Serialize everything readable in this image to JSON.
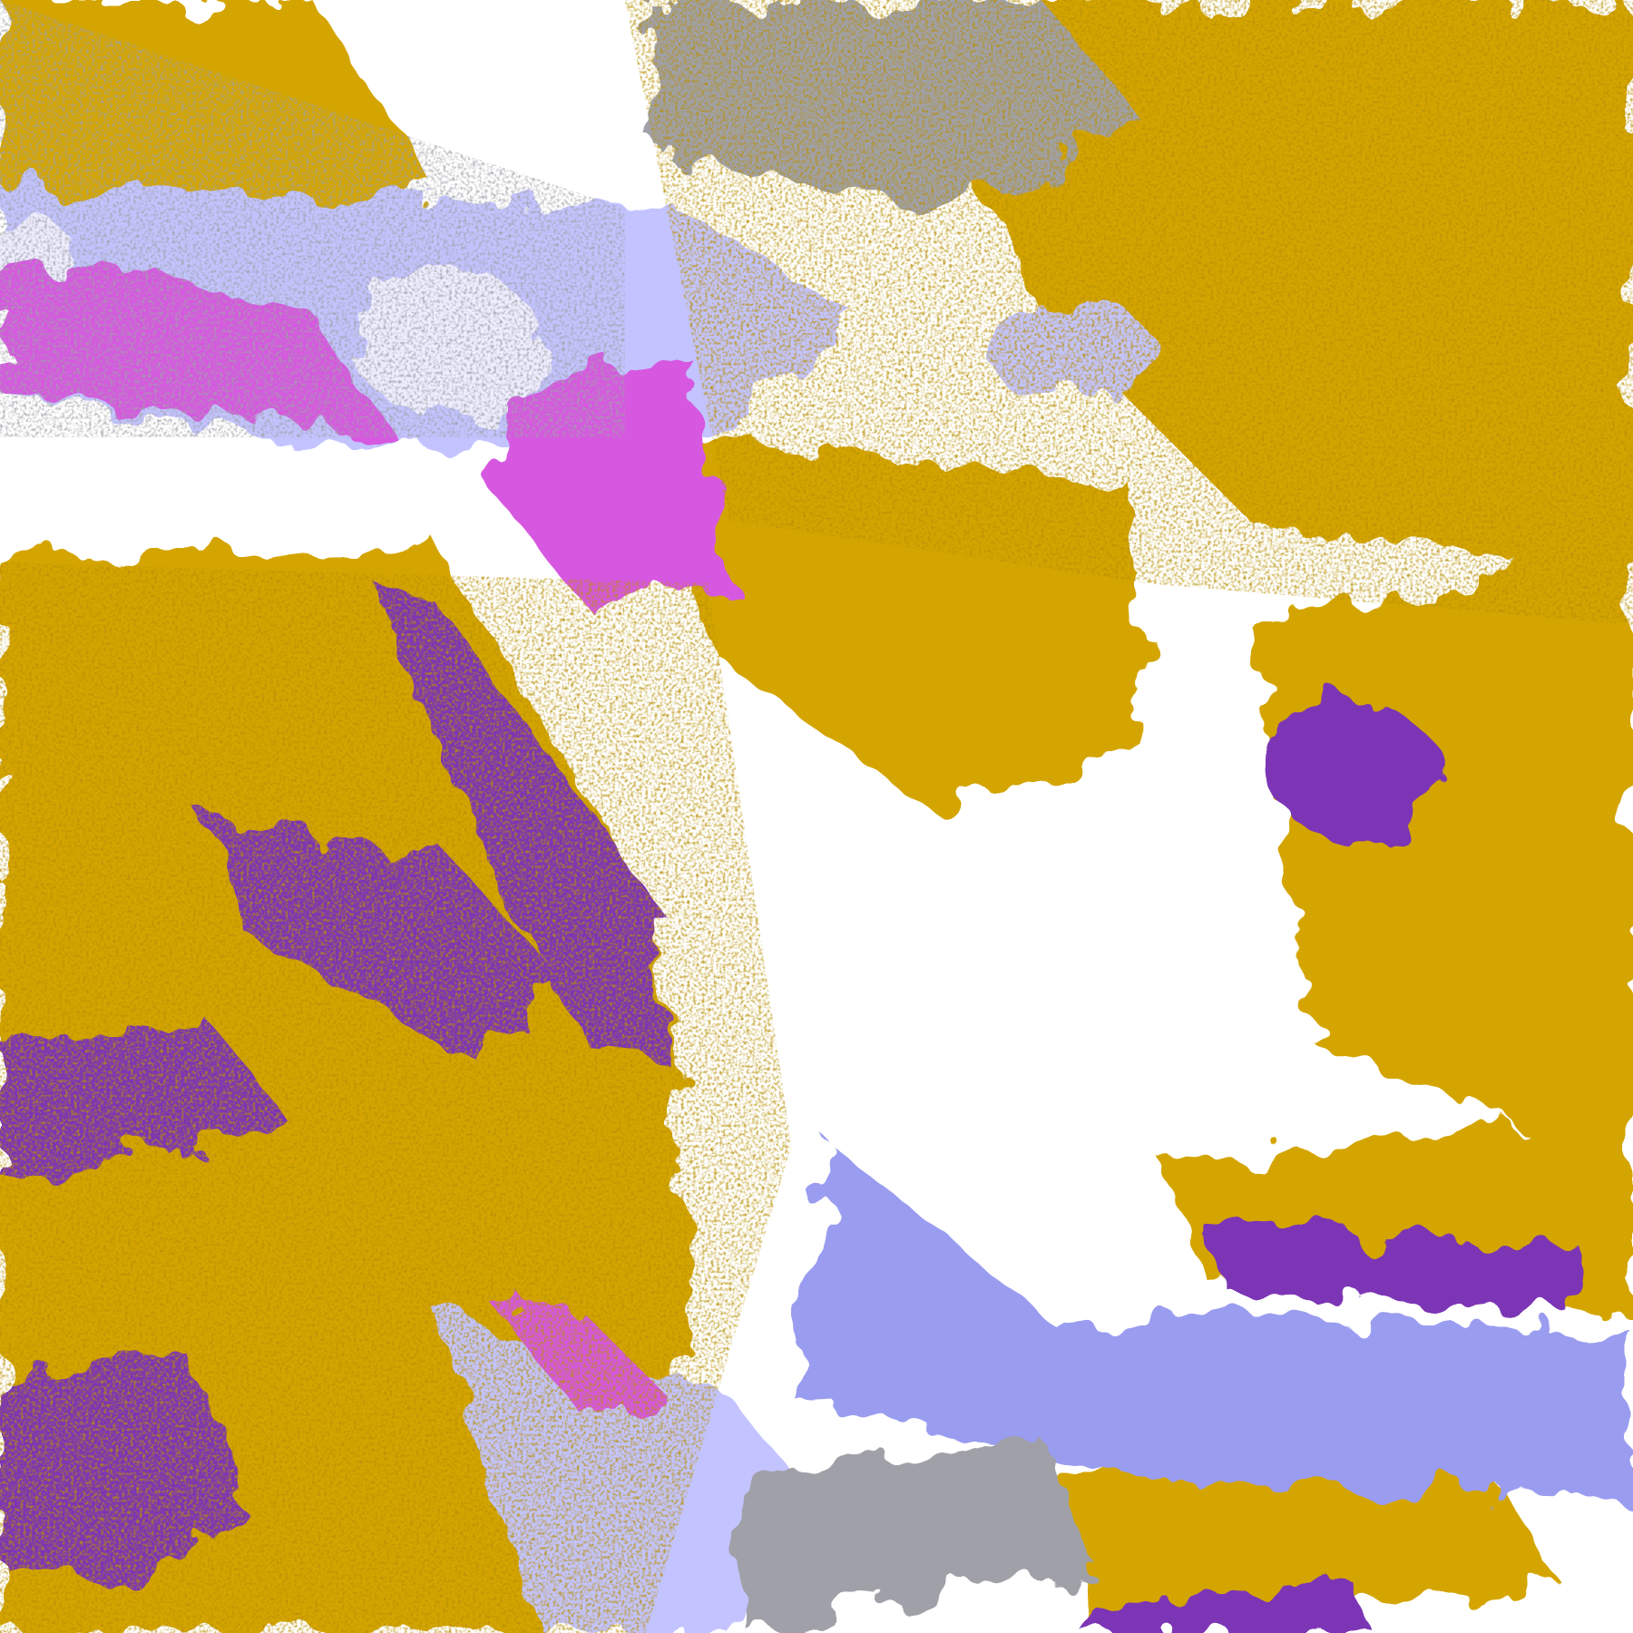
{
  "palette": {
    "clear": "#ffffff",
    "gold": "#d4a500",
    "gold_dark": "#b8900a",
    "purple": "#7b35b5",
    "magenta": "#d659e0",
    "lavender": "#c3c4ff",
    "periwinkle": "#9a9cf0",
    "pale": "#eeeeff",
    "gray": "#a0a0a8"
  }
}
